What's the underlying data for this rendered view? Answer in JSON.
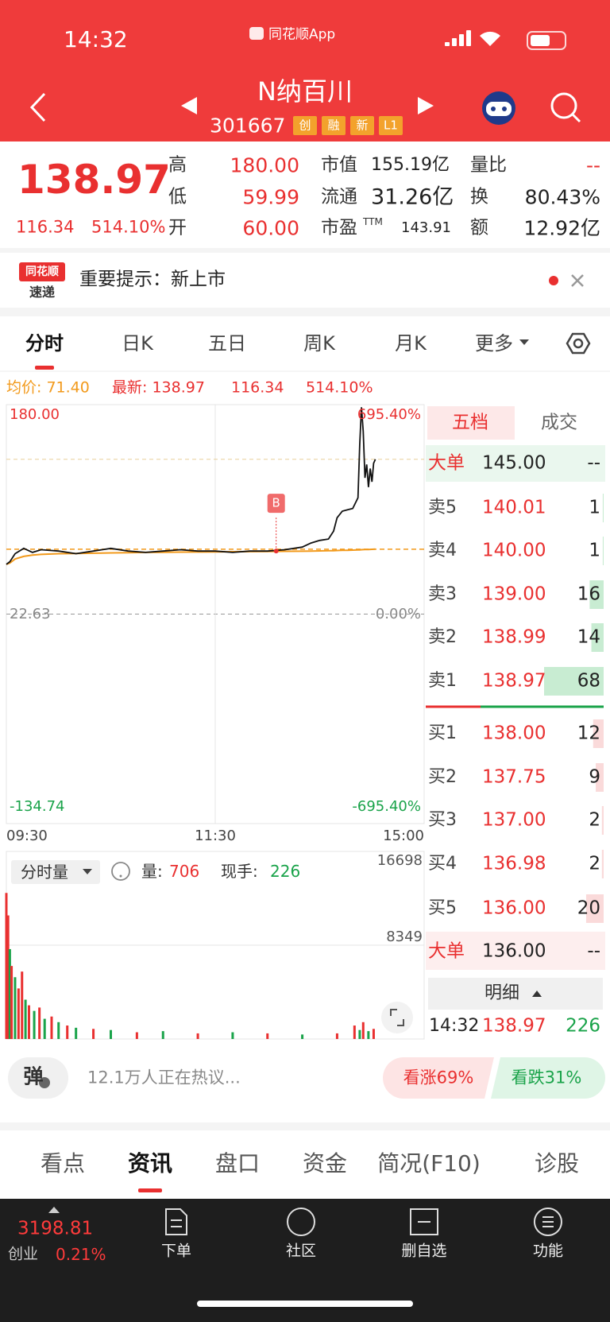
{
  "status_bar": {
    "time": "14:32",
    "app": "同花顺App"
  },
  "header": {
    "name": "N纳百川",
    "code": "301667",
    "tags": [
      "创",
      "融",
      "新",
      "L1"
    ]
  },
  "quote": {
    "price": "138.97",
    "change": "116.34",
    "change_pct": "514.10%",
    "col1": [
      {
        "label": "高",
        "value": "180.00"
      },
      {
        "label": "低",
        "value": "59.99"
      },
      {
        "label": "开",
        "value": "60.00"
      }
    ],
    "col2": [
      {
        "label": "市值",
        "value": "155.19亿"
      },
      {
        "label": "流通",
        "value": "31.26亿"
      },
      {
        "label": "市盈",
        "sup": "TTM",
        "value": "143.91"
      }
    ],
    "col3": [
      {
        "label": "量比",
        "value": "--"
      },
      {
        "label": "换",
        "value": "80.43%"
      },
      {
        "label": "额",
        "value": "12.92亿"
      }
    ]
  },
  "notice": {
    "badge_top": "同花顺",
    "badge_bottom": "速递",
    "text": "重要提示：新上市"
  },
  "chart_tabs": [
    "分时",
    "日K",
    "五日",
    "周K",
    "月K",
    "更多"
  ],
  "info": {
    "avg": "均价: 71.40",
    "latest": "最新: 138.97",
    "change": "116.34",
    "change_pct": "514.10%"
  },
  "chart_data": {
    "type": "line",
    "grid": true,
    "x": [
      0,
      2,
      5,
      10,
      15,
      20,
      30,
      40,
      50,
      60,
      70,
      80,
      90,
      100,
      110,
      120,
      130,
      140,
      150,
      160,
      170,
      175,
      180,
      185,
      188,
      190,
      193,
      196,
      199,
      202,
      203,
      204,
      205,
      206,
      207,
      208,
      209,
      210,
      211,
      212
    ],
    "xlim": [
      0,
      240
    ],
    "xticks": [
      {
        "value": 0,
        "label": "09:30"
      },
      {
        "value": 120,
        "label": "11:30"
      },
      {
        "value": 240,
        "label": "15:00"
      }
    ],
    "ylim": [
      -134.74,
      180
    ],
    "yticks": [
      {
        "value": 180,
        "label": "180.00"
      },
      {
        "value": 22.63,
        "label": "22.63"
      },
      {
        "value": -134.74,
        "label": "-134.74"
      }
    ],
    "y2lim": [
      -695.4,
      695.4
    ],
    "y2ticks": [
      {
        "value": 695.4,
        "label": "695.40%"
      },
      {
        "value": 0,
        "label": "0.00%"
      },
      {
        "value": -695.4,
        "label": "-695.40%"
      }
    ],
    "series": [
      {
        "color": "#111111",
        "values": [
          60,
          62,
          68,
          72,
          69,
          71,
          70,
          68,
          70,
          72,
          70,
          69,
          70,
          71,
          70,
          70,
          69,
          70,
          70,
          71,
          73,
          76,
          78,
          79,
          85,
          95,
          100,
          101,
          102,
          110,
          150,
          178,
          160,
          125,
          135,
          118,
          132,
          122,
          136,
          138.97
        ]
      },
      {
        "color": "#f29a1c",
        "values": [
          60,
          61,
          64,
          66,
          67,
          67.5,
          68,
          68.2,
          68.4,
          68.6,
          68.8,
          69,
          69.1,
          69.2,
          69.3,
          69.4,
          69.5,
          69.6,
          69.7,
          69.8,
          69.9,
          70,
          70.1,
          70.2,
          70.3,
          70.4,
          70.5,
          70.6,
          70.7,
          70.8,
          70.9,
          71,
          71.05,
          71.1,
          71.15,
          71.2,
          71.25,
          71.3,
          71.35,
          71.4
        ]
      }
    ],
    "marker": {
      "x": 155,
      "value": 70,
      "label": "B"
    }
  },
  "volume": {
    "label": "分时量",
    "vol_label": "量:",
    "vol": "706",
    "hand_label": "现手:",
    "hand": "226",
    "ylim": [
      0,
      16698
    ],
    "yticks": [
      8349,
      16698
    ],
    "x": [
      0,
      1,
      2,
      3,
      5,
      7,
      9,
      11,
      13,
      16,
      19,
      22,
      26,
      30,
      35,
      40,
      50,
      60,
      75,
      90,
      110,
      130,
      150,
      170,
      190,
      200,
      203,
      205,
      208,
      211
    ],
    "values": [
      13000,
      11000,
      8000,
      6500,
      5500,
      4500,
      6000,
      3500,
      3000,
      2500,
      2800,
      1800,
      2000,
      1500,
      1200,
      1000,
      900,
      800,
      600,
      700,
      500,
      600,
      500,
      400,
      500,
      1200,
      800,
      1500,
      700,
      900
    ],
    "colors": [
      "#e93030",
      "#e93030",
      "#1aa34a",
      "#e93030",
      "#1aa34a",
      "#e93030",
      "#e93030",
      "#1aa34a",
      "#e93030",
      "#1aa34a",
      "#e93030",
      "#1aa34a",
      "#e93030",
      "#1aa34a",
      "#e93030",
      "#1aa34a",
      "#e93030",
      "#1aa34a",
      "#e93030",
      "#1aa34a",
      "#e93030",
      "#1aa34a",
      "#e93030",
      "#1aa34a",
      "#e93030",
      "#e93030",
      "#1aa34a",
      "#e93030",
      "#1aa34a",
      "#e93030"
    ]
  },
  "order_book": {
    "tabs": [
      "五档",
      "成交"
    ],
    "big_sell": {
      "label": "大单",
      "price": "145.00",
      "volume": "--"
    },
    "asks": [
      {
        "label": "卖5",
        "price": "140.01",
        "volume": 1
      },
      {
        "label": "卖4",
        "price": "140.00",
        "volume": 1
      },
      {
        "label": "卖3",
        "price": "139.00",
        "volume": 16
      },
      {
        "label": "卖2",
        "price": "138.99",
        "volume": 14
      },
      {
        "label": "卖1",
        "price": "138.97",
        "volume": 68
      }
    ],
    "bids": [
      {
        "label": "买1",
        "price": "138.00",
        "volume": 12
      },
      {
        "label": "买2",
        "price": "137.75",
        "volume": 9
      },
      {
        "label": "买3",
        "price": "137.00",
        "volume": 2
      },
      {
        "label": "买4",
        "price": "136.98",
        "volume": 2
      },
      {
        "label": "买5",
        "price": "136.00",
        "volume": 20
      }
    ],
    "big_buy": {
      "label": "大单",
      "price": "136.00",
      "volume": "--"
    },
    "detail": {
      "label": "明细",
      "time": "14:32",
      "price": "138.97",
      "volume": "226"
    }
  },
  "comment_bar": {
    "button": "弹",
    "text": "12.1万人正在热议...",
    "bull": "看涨69%",
    "bear": "看跌31%"
  },
  "bottom_tabs": [
    "看点",
    "资讯",
    "盘口",
    "资金",
    "简况(F10)",
    "诊股"
  ],
  "nav": {
    "index_value": "3198.81",
    "index_name": "创业",
    "index_pct": "0.21%",
    "items": [
      "下单",
      "社区",
      "删自选",
      "功能"
    ]
  }
}
